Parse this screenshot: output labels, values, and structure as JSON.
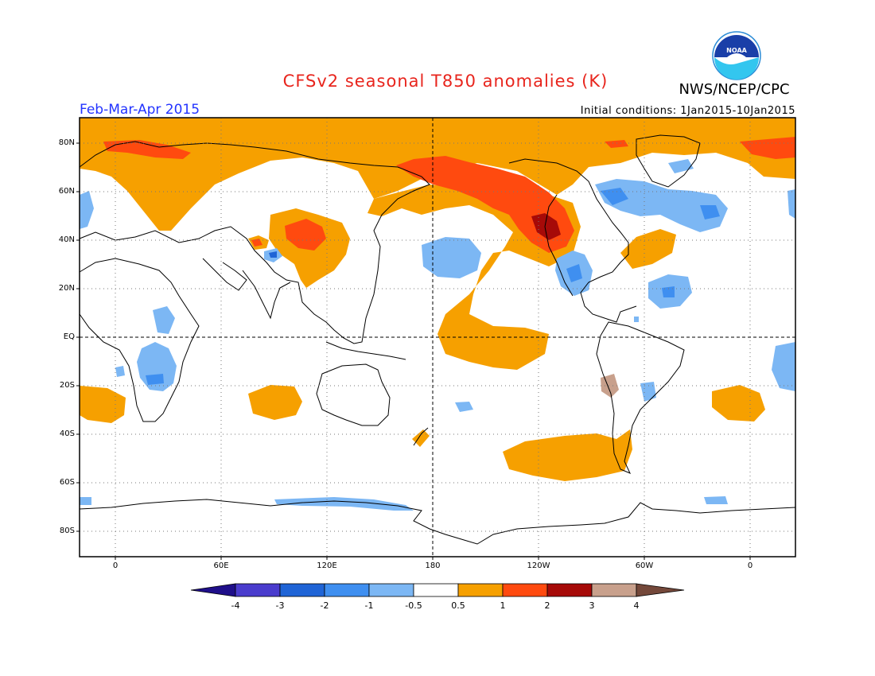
{
  "header": {
    "title": "CFSv2 seasonal T850 anomalies (K)",
    "agency": "NWS/NCEP/CPC",
    "season": "Feb-Mar-Apr 2015",
    "initial_conditions": "Initial conditions: 1Jan2015-10Jan2015",
    "logo_text": "NOAA"
  },
  "map": {
    "projection": "cylindrical equidistant",
    "lon_labels": [
      "0",
      "60E",
      "120E",
      "180",
      "120W",
      "60W",
      "0"
    ],
    "lat_labels": [
      "80N",
      "60N",
      "40N",
      "20N",
      "EQ",
      "20S",
      "40S",
      "60S",
      "80S"
    ]
  },
  "colorbar": {
    "labels": [
      "-4",
      "-3",
      "-2",
      "-1",
      "-0.5",
      "0.5",
      "1",
      "2",
      "3",
      "4"
    ],
    "colors": [
      "#1f0f8a",
      "#4a3ccd",
      "#1f64d6",
      "#3f8ff0",
      "#7cb7f4",
      "#ffffff",
      "#f6a000",
      "#ff4a0f",
      "#a60a08",
      "#c8a08c",
      "#74483a"
    ]
  },
  "colors": {
    "title": "#e8251d",
    "season": "#2233ff",
    "warm_05_1": "#f6a000",
    "warm_1_2": "#ff4a0f",
    "warm_2_3": "#a60a08",
    "cool_05_1": "#7cb7f4",
    "cool_1_2": "#3f8ff0"
  }
}
